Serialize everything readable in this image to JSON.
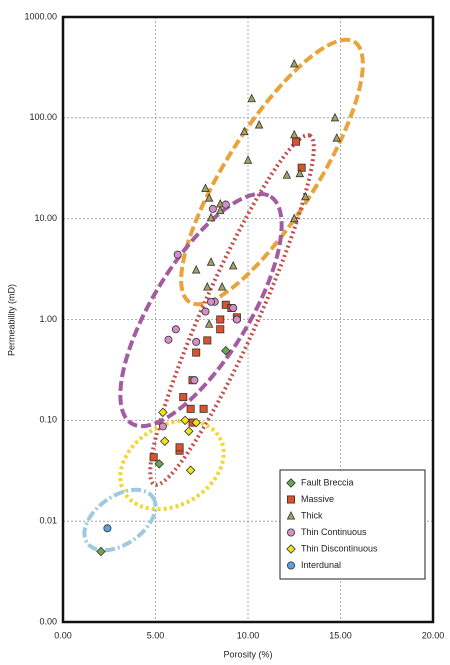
{
  "chart_data": {
    "type": "scatter",
    "x_label": "Porosity (%)",
    "y_label": "Permeability (mD)",
    "xlim": [
      0,
      20
    ],
    "ylim": [
      0.001,
      1000
    ],
    "y_scale": "log",
    "grid": true,
    "legend": "lower right",
    "xticks": [
      {
        "value": 0,
        "label": "0.00"
      },
      {
        "value": 5,
        "label": "5.00"
      },
      {
        "value": 10,
        "label": "10.00"
      },
      {
        "value": 15,
        "label": "15.00"
      },
      {
        "value": 20,
        "label": "20.00"
      }
    ],
    "yticks": [
      {
        "value": 0.001,
        "label": "0.00"
      },
      {
        "value": 0.01,
        "label": "0.01"
      },
      {
        "value": 0.1,
        "label": "0.10"
      },
      {
        "value": 1,
        "label": "1.00"
      },
      {
        "value": 10,
        "label": "10.00"
      },
      {
        "value": 100,
        "label": "100.00"
      },
      {
        "value": 1000,
        "label": "1000.00"
      }
    ],
    "series": [
      {
        "name": "Fault Breccia",
        "color": "#6aa84f",
        "marker": "diamond",
        "x": [
          8.8,
          5.2,
          2.05
        ],
        "y": [
          0.49,
          0.037,
          0.005
        ]
      },
      {
        "name": "Massive",
        "color": "#d9532c",
        "marker": "square",
        "x": [
          12.6,
          12.9,
          8.8,
          9.1,
          9.4,
          8.5,
          8.5,
          7.8,
          7.2,
          7.0,
          6.5,
          6.9,
          7.6,
          7.0,
          6.3,
          6.3,
          4.9
        ],
        "y": [
          58,
          32,
          1.4,
          1.3,
          1.05,
          1.0,
          0.8,
          0.62,
          0.47,
          0.25,
          0.17,
          0.13,
          0.13,
          0.095,
          0.05,
          0.054,
          0.043
        ]
      },
      {
        "name": "Thick",
        "color": "#a8a060",
        "marker": "triangle",
        "x": [
          12.5,
          14.7,
          14.8,
          10.2,
          9.8,
          10.6,
          12.5,
          12.8,
          12.1,
          13.1,
          10.0,
          7.7,
          7.9,
          8.5,
          8.5,
          8.0,
          12.5,
          7.2,
          8.0,
          9.2,
          8.6,
          7.8,
          7.9
        ],
        "y": [
          343,
          100,
          63,
          155,
          73,
          85,
          68,
          28,
          27,
          16.5,
          38,
          20,
          16,
          14,
          12,
          10.2,
          10,
          3.1,
          3.7,
          3.4,
          2.1,
          2.1,
          0.9
        ]
      },
      {
        "name": "Thin Continuous",
        "color": "#d48ec8",
        "marker": "circle",
        "x": [
          8.8,
          8.1,
          6.2,
          8.2,
          8.0,
          7.7,
          9.2,
          9.4,
          6.1,
          5.7,
          7.2,
          7.1,
          5.4
        ],
        "y": [
          13.8,
          12.5,
          4.4,
          1.5,
          1.5,
          1.2,
          1.3,
          1.0,
          0.8,
          0.63,
          0.6,
          0.25,
          0.087
        ]
      },
      {
        "name": "Thin Discontinuous",
        "color": "#f2e21b",
        "marker": "diamond",
        "x": [
          5.4,
          6.6,
          7.2,
          6.8,
          5.5,
          6.9
        ],
        "y": [
          0.12,
          0.1,
          0.095,
          0.078,
          0.062,
          0.032
        ]
      },
      {
        "name": "Interdunal",
        "color": "#5ba3e0",
        "marker": "circle",
        "x": [
          2.4
        ],
        "y": [
          0.0085
        ]
      }
    ]
  }
}
